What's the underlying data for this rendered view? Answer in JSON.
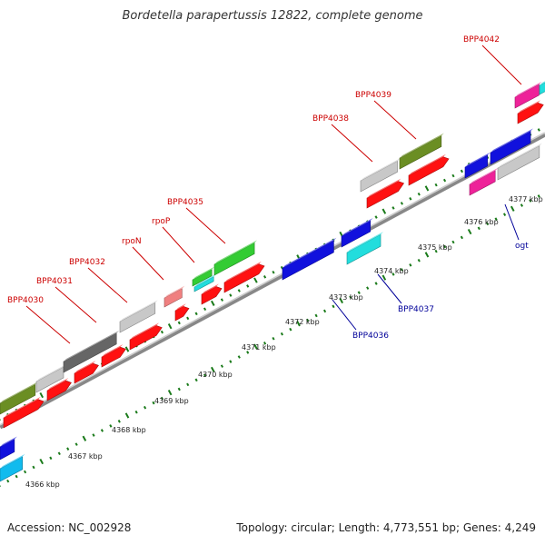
{
  "title": "Bordetella parapertussis 12822, complete genome",
  "footer": {
    "accession": "Accession: NC_002928",
    "summary": "Topology: circular; Length: 4,773,551 bp; Genes: 4,249"
  },
  "colors": {
    "backbone": "#9a9a9a",
    "tick": "#1a7a1a",
    "forward_label": "#cc0000",
    "reverse_label": "#000099",
    "cds": "#ff1111",
    "olive": "#6b8e23",
    "green": "#33cc33",
    "grey": "#c8c8c8",
    "darkgrey": "#666666",
    "pink": "#f08080",
    "cyan": "#22dddd",
    "blue": "#1111dd",
    "magenta": "#ee2299"
  },
  "scale_labels": [
    "4366 kbp",
    "4367 kbp",
    "4368 kbp",
    "4369 kbp",
    "4370 kbp",
    "4371 kbp",
    "4372 kbp",
    "4373 kbp",
    "4374 kbp",
    "4375 kbp",
    "4376 kbp",
    "4377 kbp"
  ],
  "forward_gene_labels": [
    "BPP4030",
    "BPP4031",
    "BPP4032",
    "rpoN",
    "rpoP",
    "BPP4035",
    "BPP4038",
    "BPP4039",
    "BPP4042"
  ],
  "reverse_gene_labels": [
    "BPP4036",
    "BPP4037",
    "ogt"
  ]
}
